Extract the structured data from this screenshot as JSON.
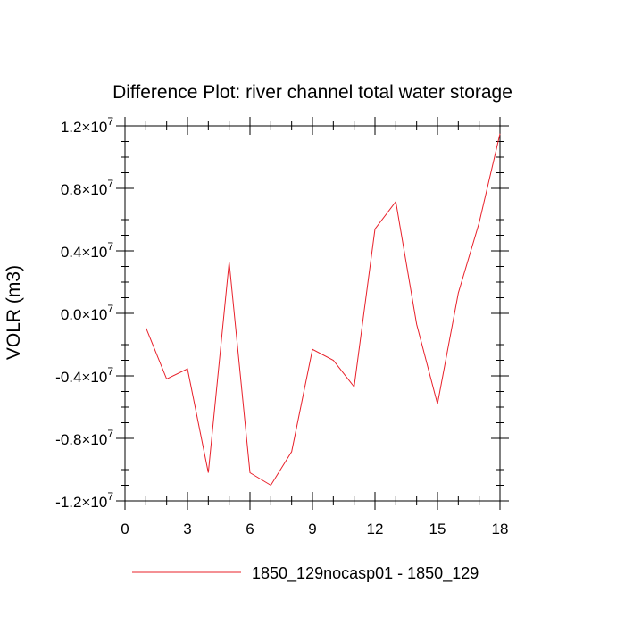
{
  "chart_data": {
    "type": "line",
    "title": "Difference Plot: river channel total water storage",
    "ylabel": "VOLR  (m3)",
    "xlabel": "",
    "xlim": [
      0,
      18
    ],
    "ylim": [
      -1.2,
      1.2
    ],
    "y_multiplier_label": "×10",
    "y_exponent": "7",
    "x_ticks": [
      0,
      3,
      6,
      9,
      12,
      15,
      18
    ],
    "x_ticks_labels": [
      "0",
      "3",
      "6",
      "9",
      "12",
      "15",
      "18"
    ],
    "y_ticks": [
      -1.2,
      -0.8,
      -0.4,
      0.0,
      0.4,
      0.8,
      1.2
    ],
    "y_ticks_labels": [
      "-1.2",
      "-0.8",
      "-0.4",
      "0.0",
      "0.4",
      "0.8",
      "1.2"
    ],
    "grid": false,
    "legend_position": "bottom",
    "series": [
      {
        "name": "1850_129nocasp01 - 1850_129",
        "color": "#e8202a",
        "x": [
          1,
          2,
          3,
          4,
          5,
          6,
          7,
          8,
          9,
          10,
          11,
          12,
          13,
          14,
          15,
          16,
          17,
          18
        ],
        "y": [
          -0.09,
          -0.42,
          -0.355,
          -1.02,
          0.33,
          -1.02,
          -1.1,
          -0.885,
          -0.23,
          -0.3,
          -0.47,
          0.54,
          0.715,
          -0.07,
          -0.58,
          0.13,
          0.58,
          1.15
        ]
      }
    ]
  }
}
